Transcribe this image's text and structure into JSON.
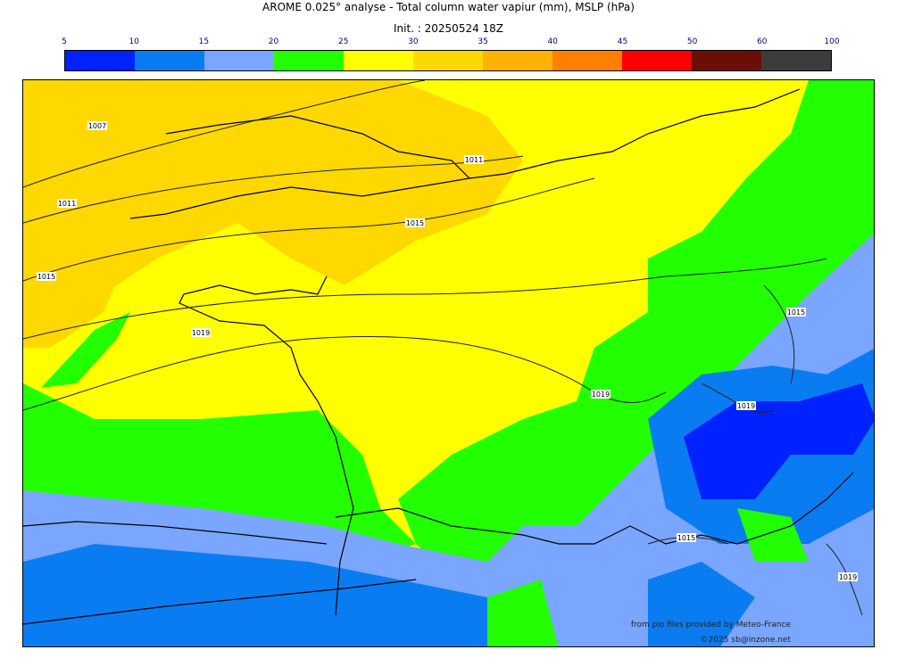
{
  "header": {
    "title": "AROME 0.025° analyse - Total column water vapiur (mm), MSLP (hPa)",
    "init": "Init. : 20250524 18Z"
  },
  "colorbar": {
    "ticks": [
      "5",
      "10",
      "15",
      "20",
      "25",
      "30",
      "35",
      "40",
      "45",
      "50",
      "60",
      "100"
    ],
    "colors": [
      "#0022ff",
      "#0a7cf2",
      "#7aa6ff",
      "#22ff00",
      "#ffff00",
      "#ffd800",
      "#ffb300",
      "#ff8000",
      "#ff0000",
      "#6b0e08",
      "#3c3c3c"
    ]
  },
  "isobars": [
    "1007",
    "1011",
    "1011",
    "1015",
    "1015",
    "1019",
    "1019",
    "1019",
    "1015",
    "1015",
    "1019"
  ],
  "credits": {
    "line1": "from pio files provided by Meteo-France",
    "line2": "©2025 sb@inzone.net"
  }
}
